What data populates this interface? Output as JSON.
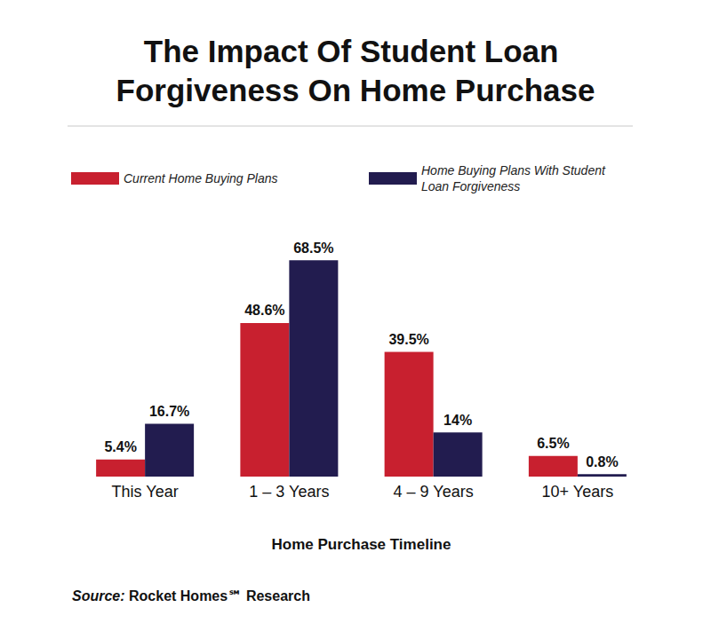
{
  "chart_data": {
    "type": "bar",
    "title": "The Impact Of Student Loan Forgiveness On Home Purchase",
    "x_label": "Home Purchase Timeline",
    "source": "Source: Rocket Homes℠ Research",
    "categories": [
      "This Year",
      "1 – 3 Years",
      "4 – 9 Years",
      "10+ Years"
    ],
    "series": [
      {
        "name": "Current Home Buying Plans",
        "color": "#c8202f",
        "values": [
          5.4,
          48.6,
          39.5,
          6.5
        ],
        "value_labels": [
          "5.4%",
          "48.6%",
          "39.5%",
          "6.5%"
        ]
      },
      {
        "name": "Home Buying Plans With Student Loan Forgiveness",
        "color": "#221c4f",
        "values": [
          16.7,
          68.5,
          14,
          0.8
        ],
        "value_labels": [
          "16.7%",
          "68.5%",
          "14%",
          "0.8%"
        ]
      }
    ],
    "ylim": [
      0,
      75
    ],
    "grid": false,
    "legend": "top",
    "data_labels": true,
    "tick_labels": "x"
  }
}
